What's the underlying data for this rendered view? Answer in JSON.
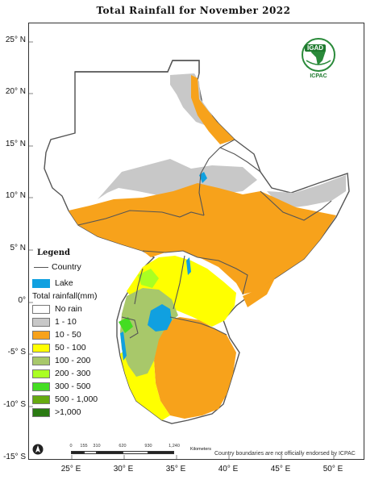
{
  "title": "Total  Rainfall for  November  2022",
  "lat_labels": [
    "25° N",
    "20° N",
    "15° N",
    "10° N",
    "5° N",
    "0°",
    "-5° S",
    "-10° S",
    "-15° S"
  ],
  "lon_labels": [
    "25° E",
    "30° E",
    "35° E",
    "40° E",
    "45° E",
    "50° E"
  ],
  "logo": {
    "name": "IGAD",
    "subtitle": "ICPAC"
  },
  "legend": {
    "title": "Legend",
    "country_label": "Country",
    "lake_label": "Lake",
    "rainfall_title": "Total rainfall(mm)",
    "classes": [
      {
        "label": "No rain",
        "color": "#ffffff"
      },
      {
        "label": "1 - 10",
        "color": "#c8c8c8"
      },
      {
        "label": "10 - 50",
        "color": "#f7a21b"
      },
      {
        "label": "50 - 100",
        "color": "#ffff00"
      },
      {
        "label": "100 - 200",
        "color": "#a8c86a"
      },
      {
        "label": "200 - 300",
        "color": "#aaff22"
      },
      {
        "label": "300 - 500",
        "color": "#44dd22"
      },
      {
        "label": "500 - 1,000",
        "color": "#66aa11"
      },
      {
        "label": ">1,000",
        "color": "#2a7a12"
      }
    ],
    "lake_color": "#10a0e0",
    "country_line_color": "#555555"
  },
  "scale_bar": {
    "ticks": [
      "0",
      "155",
      "310",
      "620",
      "930",
      "1,240"
    ],
    "unit": "Kilometers"
  },
  "disclaimer": "Country boundaries are not officially endorsed by ICPAC"
}
